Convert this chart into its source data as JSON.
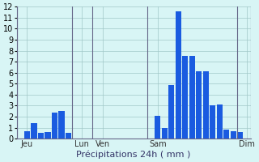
{
  "xlabel": "Précipitations 24h ( mm )",
  "ylabel": "",
  "ylim": [
    0,
    12
  ],
  "yticks": [
    0,
    1,
    2,
    3,
    4,
    5,
    6,
    7,
    8,
    9,
    10,
    11,
    12
  ],
  "background_color": "#d8f5f5",
  "bar_color": "#1a5be0",
  "grid_color": "#a0c8c8",
  "bar_values": [
    0,
    0.7,
    1.4,
    0.5,
    0.6,
    2.4,
    2.5,
    0.5,
    0,
    0,
    0,
    0,
    0,
    0,
    0,
    0,
    0,
    0,
    0,
    0,
    2.1,
    1.0,
    4.9,
    11.6,
    7.5,
    7.5,
    6.1,
    6.1,
    3.0,
    3.1,
    0.8,
    0.7,
    0.6,
    0
  ],
  "n_bars": 34,
  "day_labels": [
    "Jeu",
    "Lun",
    "Ven",
    "Sam",
    "Dim"
  ],
  "day_positions": [
    1,
    9,
    12,
    20,
    33
  ],
  "vline_positions": [
    0,
    8,
    11,
    19,
    32
  ]
}
